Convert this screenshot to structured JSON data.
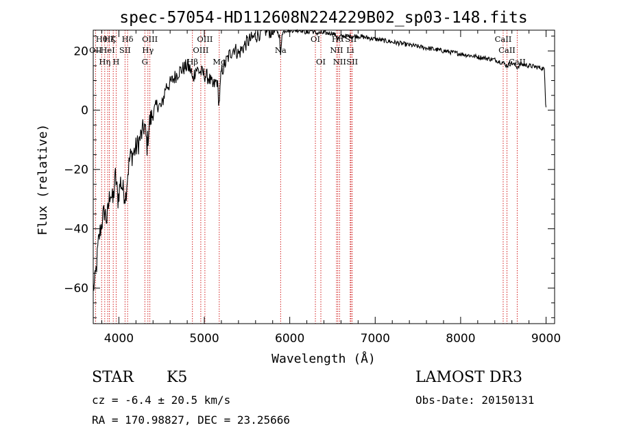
{
  "chart_data": {
    "type": "line",
    "title": "spec-57054-HD112608N224229B02_sp03-148.fits",
    "xlabel": "Wavelength (Å)",
    "ylabel": "Flux (relative)",
    "xlim": [
      3700,
      9100
    ],
    "ylim": [
      -72,
      27
    ],
    "xticks": [
      4000,
      5000,
      6000,
      7000,
      8000,
      9000
    ],
    "yticks": [
      -60,
      -40,
      -20,
      0,
      20
    ],
    "series": [
      {
        "name": "spectrum",
        "x": [
          3700,
          3720,
          3740,
          3760,
          3780,
          3800,
          3830,
          3860,
          3900,
          3930,
          3960,
          3990,
          4020,
          4050,
          4080,
          4100,
          4130,
          4180,
          4230,
          4280,
          4300,
          4330,
          4360,
          4400,
          4450,
          4500,
          4550,
          4600,
          4650,
          4700,
          4750,
          4800,
          4850,
          4861,
          4900,
          4950,
          5000,
          5050,
          5100,
          5150,
          5172,
          5200,
          5250,
          5300,
          5350,
          5400,
          5450,
          5500,
          5550,
          5600,
          5650,
          5700,
          5750,
          5800,
          5850,
          5880,
          5893,
          5910,
          5950,
          6000,
          6050,
          6100,
          6150,
          6200,
          6250,
          6300,
          6350,
          6400,
          6450,
          6500,
          6550,
          6563,
          6600,
          6650,
          6700,
          6750,
          6800,
          6900,
          7000,
          7100,
          7200,
          7300,
          7400,
          7500,
          7600,
          7700,
          7800,
          7900,
          8000,
          8100,
          8200,
          8300,
          8400,
          8498,
          8542,
          8600,
          8662,
          8700,
          8800,
          8900,
          8980,
          8995,
          9000
        ],
        "values": [
          -60,
          -58,
          -52,
          -45,
          -41,
          -38,
          -34,
          -37,
          -27,
          -31,
          -22,
          -30,
          -24,
          -27,
          -29,
          -22,
          -16,
          -14,
          -11,
          -7,
          -5,
          -12,
          -4,
          -1,
          2,
          1,
          8,
          9,
          11,
          13,
          14,
          15,
          13,
          10,
          14,
          13,
          12,
          11,
          8,
          10,
          2,
          13,
          16,
          19,
          21,
          19,
          21,
          23,
          24,
          25,
          26,
          27,
          27,
          26,
          27,
          25,
          18,
          26,
          27,
          27,
          27,
          27,
          27,
          26,
          27,
          26,
          26,
          26,
          26,
          26,
          25,
          24,
          25,
          25,
          25,
          25,
          25,
          24.5,
          24,
          23.5,
          23,
          22.5,
          22,
          21.5,
          21,
          20.5,
          20,
          19.5,
          19,
          18.5,
          18,
          17.5,
          17,
          16,
          15,
          16,
          14.5,
          15.5,
          15,
          14.5,
          14,
          2,
          1
        ]
      }
    ],
    "line_markers": [
      {
        "wavelength": 3727,
        "label": "OII",
        "row": 1
      },
      {
        "wavelength": 3798,
        "label": "Hθ",
        "row": 0
      },
      {
        "wavelength": 3835,
        "label": "Hη",
        "row": 2
      },
      {
        "wavelength": 3869,
        "label": "HeI",
        "row": 1
      },
      {
        "wavelength": 3889,
        "label": "Hζ",
        "row": 0
      },
      {
        "wavelength": 3934,
        "label": "K",
        "row": 0
      },
      {
        "wavelength": 3968,
        "label": "H",
        "row": 2
      },
      {
        "wavelength": 4072,
        "label": "SII",
        "row": 1
      },
      {
        "wavelength": 4102,
        "label": "Hδ",
        "row": 0
      },
      {
        "wavelength": 4304,
        "label": "G",
        "row": 2
      },
      {
        "wavelength": 4340,
        "label": "Hγ",
        "row": 1
      },
      {
        "wavelength": 4363,
        "label": "OIII",
        "row": 0
      },
      {
        "wavelength": 4861,
        "label": "Hβ",
        "row": 2
      },
      {
        "wavelength": 4959,
        "label": "OIII",
        "row": 1
      },
      {
        "wavelength": 5007,
        "label": "OIII",
        "row": 0
      },
      {
        "wavelength": 5175,
        "label": "Mg",
        "row": 2
      },
      {
        "wavelength": 5893,
        "label": "Na",
        "row": 1
      },
      {
        "wavelength": 6300,
        "label": "OI",
        "row": 0
      },
      {
        "wavelength": 6364,
        "label": "OI",
        "row": 2
      },
      {
        "wavelength": 6548,
        "label": "NII",
        "row": 1
      },
      {
        "wavelength": 6563,
        "label": "Hα",
        "row": 0
      },
      {
        "wavelength": 6583,
        "label": "NII",
        "row": 2
      },
      {
        "wavelength": 6708,
        "label": "Li",
        "row": 1
      },
      {
        "wavelength": 6716,
        "label": "SII",
        "row": 0
      },
      {
        "wavelength": 6731,
        "label": "SII",
        "row": 2
      },
      {
        "wavelength": 8498,
        "label": "CaII",
        "row": 0
      },
      {
        "wavelength": 8542,
        "label": "CaII",
        "row": 1
      },
      {
        "wavelength": 8662,
        "label": "CaII",
        "row": 2
      }
    ]
  },
  "info": {
    "object_class": "STAR",
    "subclass": "K5",
    "survey": "LAMOST DR3",
    "redshift": "cz = -6.4 ± 20.5 km/s",
    "obs_date": "Obs-Date: 20150131",
    "coordinates": "RA = 170.98827, DEC =  23.25666"
  },
  "colors": {
    "line_marker": "#cc0000",
    "spectrum": "#000000",
    "axes": "#000000"
  }
}
